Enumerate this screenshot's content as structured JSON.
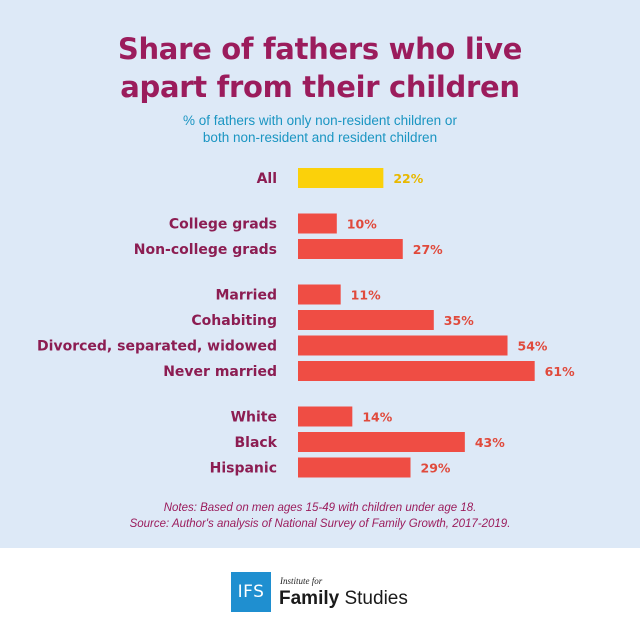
{
  "title_line1": "Share of fathers who live",
  "title_line2": "apart from their children",
  "subtitle_line1": "% of fathers with only non-resident children or",
  "subtitle_line2": "both non-resident and resident children",
  "notes_line1": "Notes: Based on men ages 15-49 with children under age 18.",
  "notes_line2": "Source: Author's analysis of National Survey of Family Growth, 2017-2019.",
  "logo": {
    "mark": "IFS",
    "small": "Institute for",
    "name_bold": "Family",
    "name_rest": " Studies"
  },
  "colors": {
    "highlight_bar": "#fbd10a",
    "highlight_label": "#e8b800",
    "bar": "#ef4d44",
    "bar_label": "#e04a3c",
    "category_label": "#8c1d52",
    "title": "#9b1c5c",
    "subtitle": "#1a95c2",
    "background": "#dde9f7"
  },
  "chart_data": {
    "type": "bar",
    "orientation": "horizontal",
    "categories": [
      "All",
      "College grads",
      "Non-college grads",
      "Married",
      "Cohabiting",
      "Divorced, separated, widowed",
      "Never married",
      "White",
      "Black",
      "Hispanic"
    ],
    "values": [
      22,
      10,
      27,
      11,
      35,
      54,
      61,
      14,
      43,
      29
    ],
    "value_labels": [
      "22%",
      "10%",
      "27%",
      "11%",
      "35%",
      "54%",
      "61%",
      "14%",
      "43%",
      "29%"
    ],
    "groups": [
      [
        "All"
      ],
      [
        "College grads",
        "Non-college grads"
      ],
      [
        "Married",
        "Cohabiting",
        "Divorced, separated, widowed",
        "Never married"
      ],
      [
        "White",
        "Black",
        "Hispanic"
      ]
    ],
    "highlighted": [
      "All"
    ],
    "unit": "%",
    "xlim": [
      0,
      61
    ],
    "grid": false,
    "legend": "none"
  }
}
